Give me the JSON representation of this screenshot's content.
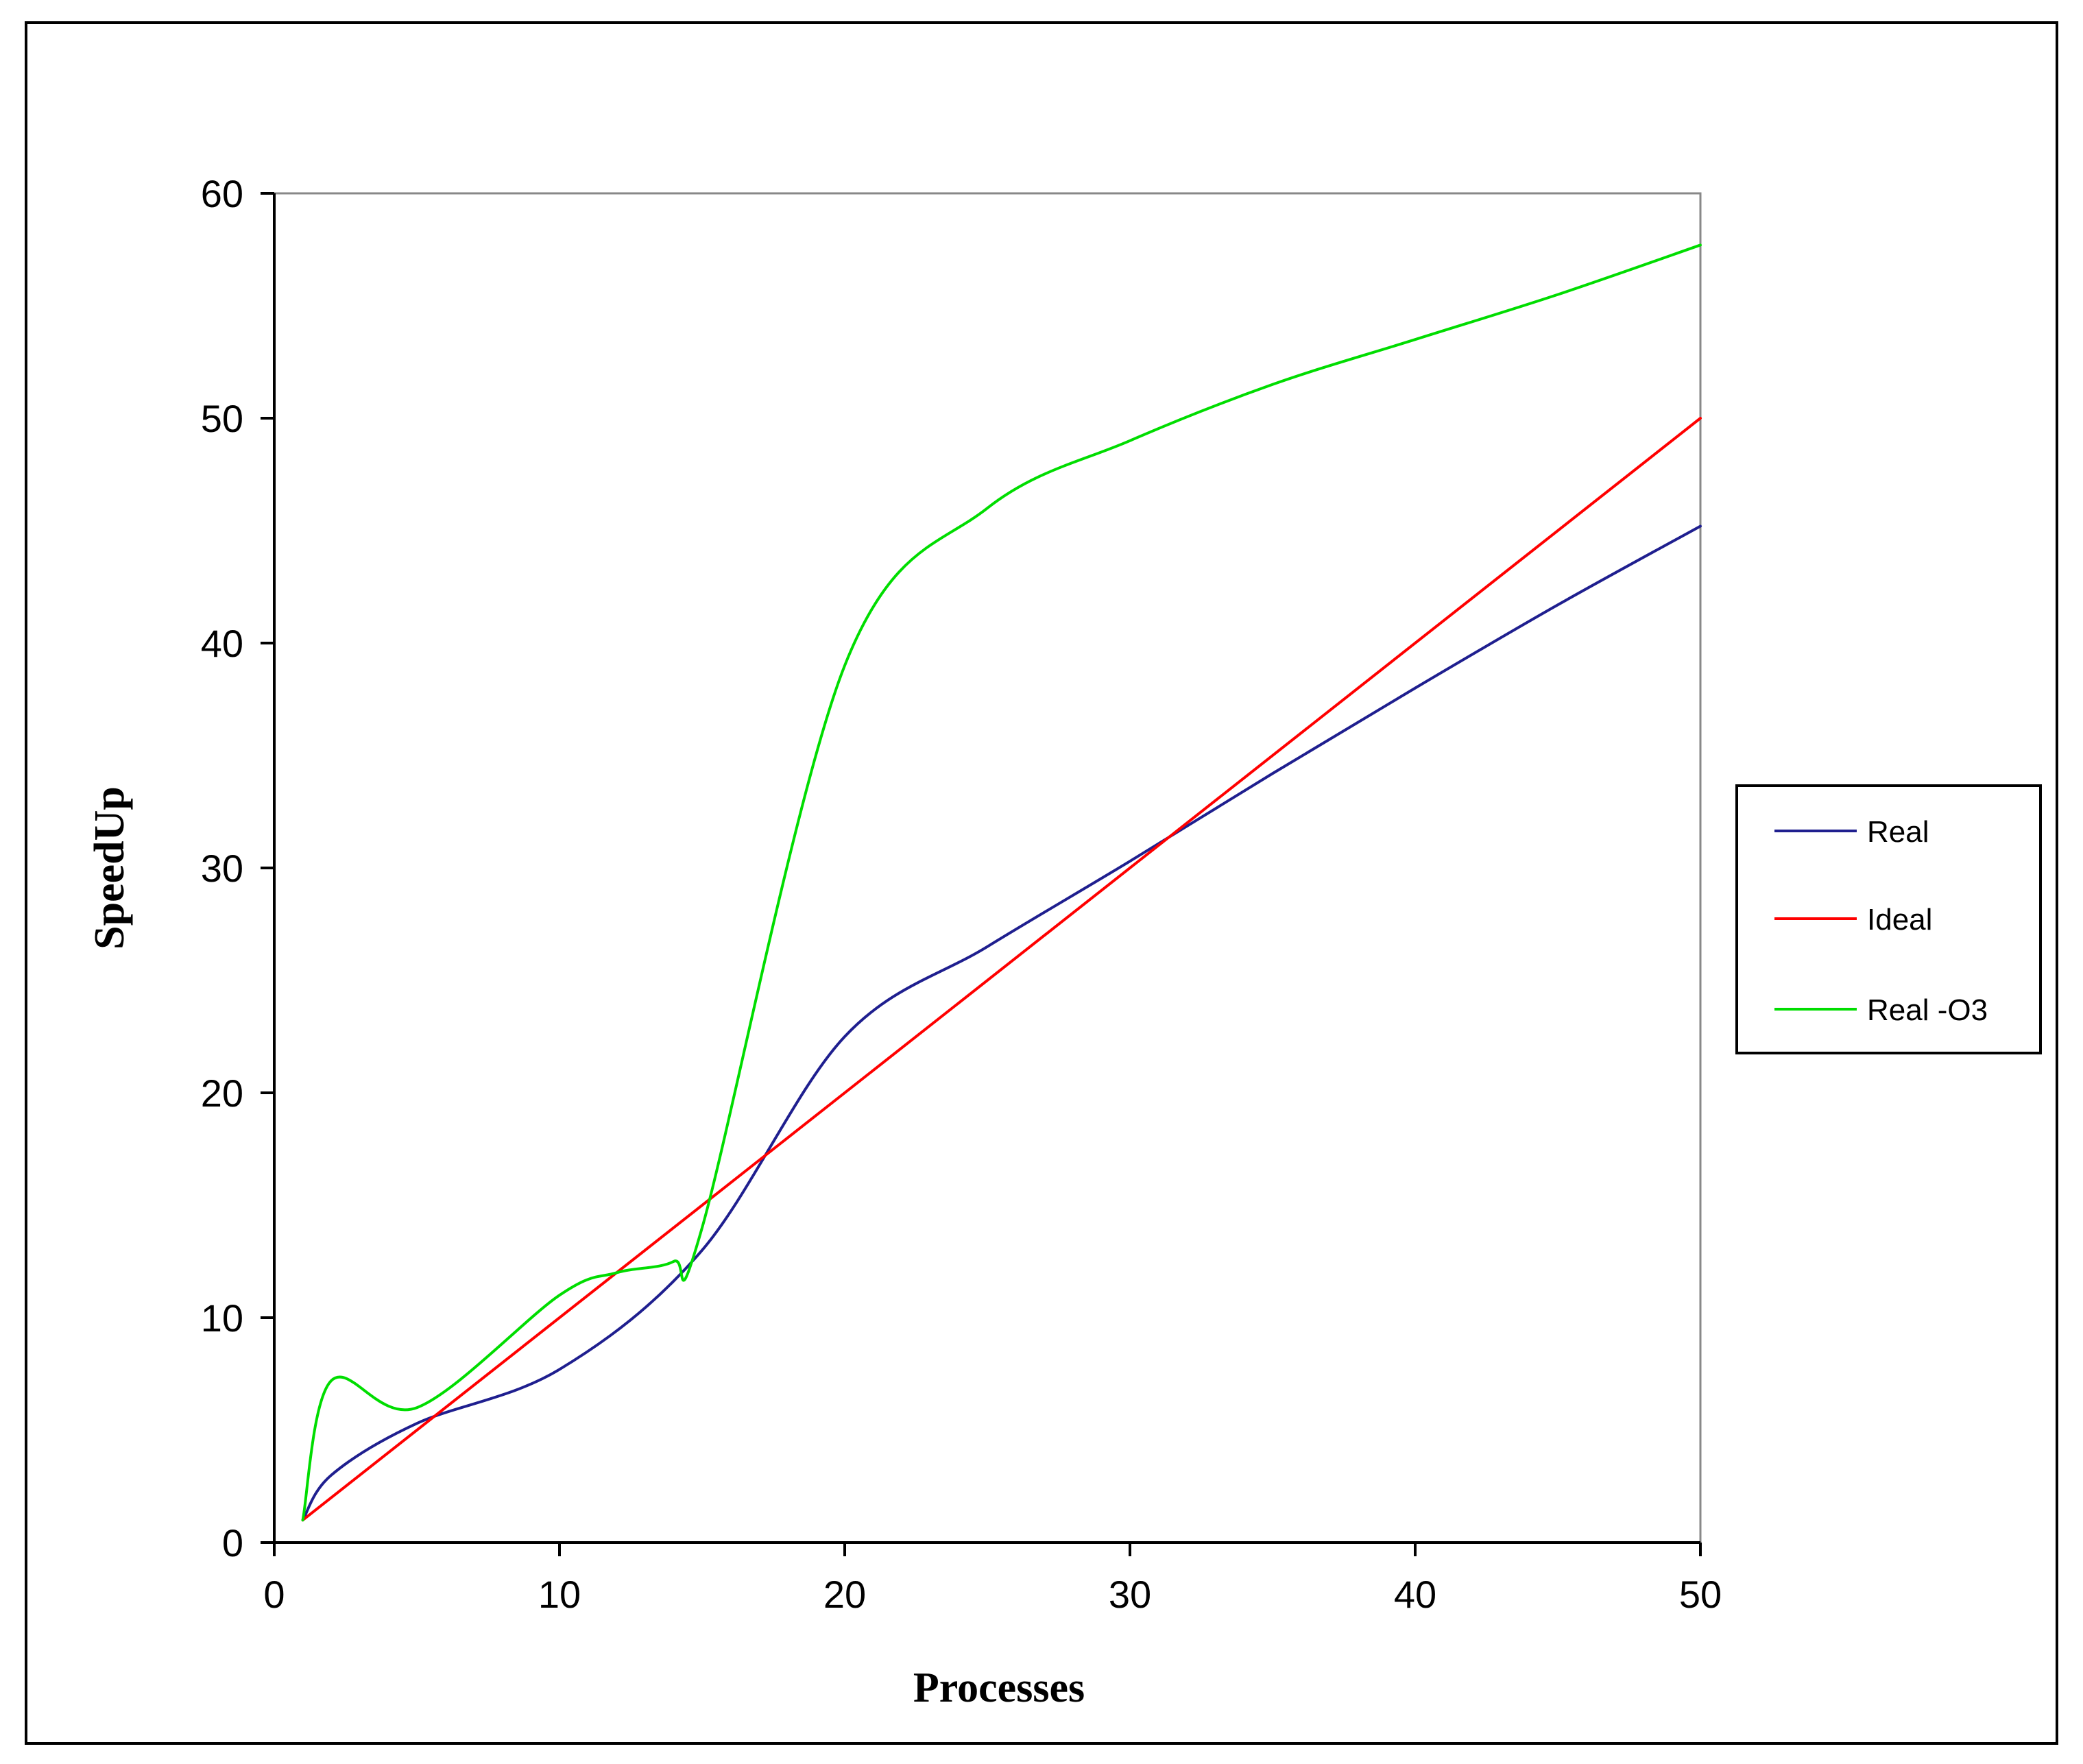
{
  "chart_data": {
    "type": "line",
    "title": "",
    "xlabel": "Processes",
    "ylabel": "SpeedUp",
    "xlim": [
      0,
      50
    ],
    "ylim": [
      0,
      60
    ],
    "x_ticks": [
      "0",
      "10",
      "20",
      "30",
      "40",
      "50"
    ],
    "y_ticks": [
      "0",
      "10",
      "20",
      "30",
      "40",
      "50",
      "60"
    ],
    "grid": false,
    "legend_position": "right",
    "series": [
      {
        "name": "Real",
        "color": "#1f1f8f",
        "x": [
          1,
          2,
          5,
          10,
          15,
          20,
          25,
          30,
          35,
          40,
          45,
          50
        ],
        "y": [
          1,
          3,
          5.3,
          7.7,
          13,
          22.5,
          26.5,
          30.3,
          34.2,
          38,
          41.7,
          45.2
        ]
      },
      {
        "name": "Ideal",
        "color": "#ff0000",
        "x": [
          1,
          50
        ],
        "y": [
          1,
          50
        ]
      },
      {
        "name": "Real -O3",
        "color": "#00dd00",
        "x": [
          1,
          2,
          5,
          10,
          12,
          14,
          15,
          20,
          25,
          30,
          35,
          40,
          45,
          50
        ],
        "y": [
          1,
          7.2,
          6,
          11,
          12,
          12.5,
          14,
          39,
          46,
          49,
          51.5,
          53.5,
          55.5,
          57.7
        ]
      }
    ]
  }
}
